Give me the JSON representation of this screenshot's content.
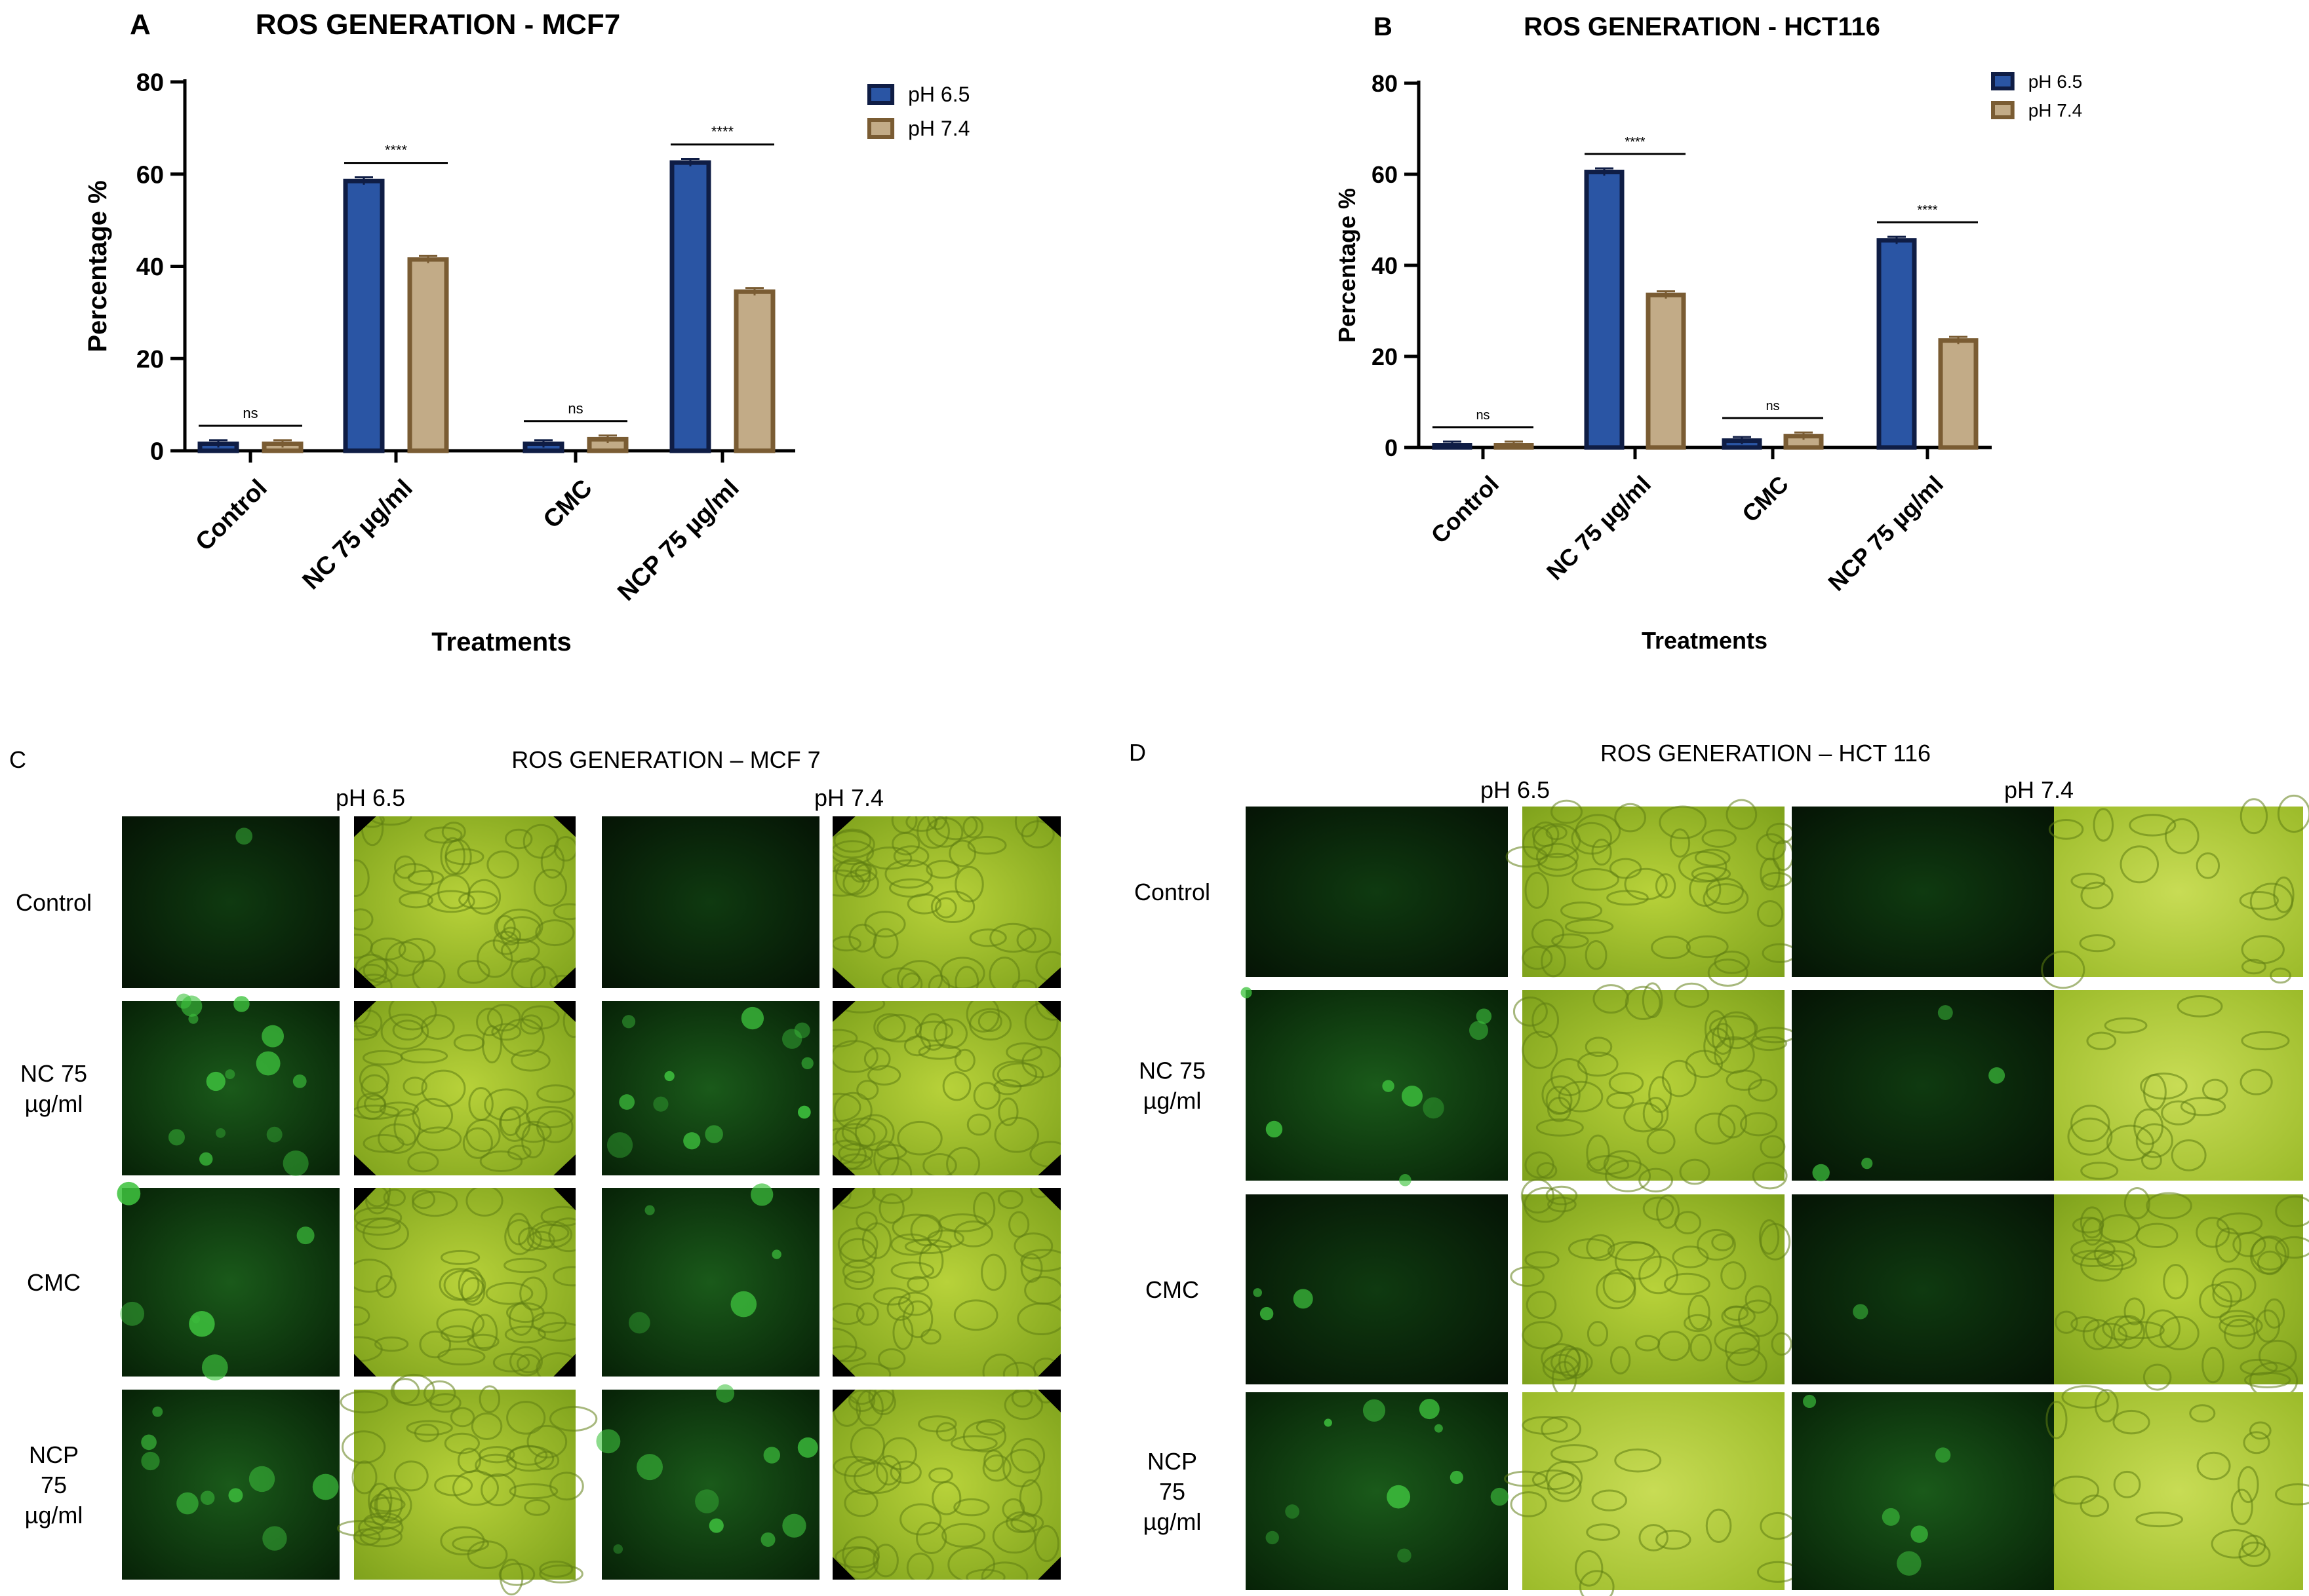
{
  "panels": {
    "A": {
      "letter": "A",
      "title": "ROS GENERATION - MCF7"
    },
    "B": {
      "letter": "B",
      "title": "ROS GENERATION - HCT116"
    },
    "C": {
      "letter": "C",
      "title": "ROS GENERATION – MCF 7",
      "col_labels": [
        "pH 6.5",
        "pH 7.4"
      ],
      "row_labels": [
        [
          "Control"
        ],
        [
          "NC 75",
          "µg/ml"
        ],
        [
          "CMC"
        ],
        [
          "NCP",
          "75",
          "µg/ml"
        ]
      ]
    },
    "D": {
      "letter": "D",
      "title": "ROS GENERATION – HCT 116",
      "col_labels": [
        "pH 6.5",
        "pH 7.4"
      ],
      "row_labels": [
        [
          "Control"
        ],
        [
          "NC 75",
          "µg/ml"
        ],
        [
          "CMC"
        ],
        [
          "NCP",
          "75",
          "µg/ml"
        ]
      ]
    }
  },
  "colors": {
    "ph65": "#2a55a4",
    "ph65_edge": "#0f1d45",
    "ph74": "#c2ab87",
    "ph74_edge": "#7a5c33"
  },
  "chart_data": [
    {
      "type": "bar",
      "title": "ROS GENERATION - MCF7",
      "xlabel": "Treatments",
      "ylabel": "Percentage %",
      "ylim": [
        0,
        80
      ],
      "yticks": [
        0,
        20,
        40,
        60,
        80
      ],
      "categories": [
        "Control",
        "NC 75 µg/ml",
        "CMC",
        "NCP 75 µg/ml"
      ],
      "series": [
        {
          "name": "pH 6.5",
          "values": [
            1.5,
            58.5,
            1.5,
            62.5
          ],
          "errors": [
            0.8,
            0.8,
            0.8,
            0.8
          ]
        },
        {
          "name": "pH 7.4",
          "values": [
            1.5,
            41.5,
            2.5,
            34.5
          ],
          "errors": [
            0.8,
            0.8,
            0.8,
            0.8
          ]
        }
      ],
      "significance": [
        "ns",
        "****",
        "ns",
        "****"
      ],
      "legend": "top-right",
      "grid": false
    },
    {
      "type": "bar",
      "title": "ROS GENERATION - HCT116",
      "xlabel": "Treatments",
      "ylabel": "Percentage %",
      "ylim": [
        0,
        80
      ],
      "yticks": [
        0,
        20,
        40,
        60,
        80
      ],
      "categories": [
        "Control",
        "NC 75 µg/ml",
        "CMC",
        "NCP 75 µg/ml"
      ],
      "series": [
        {
          "name": "pH 6.5",
          "values": [
            0.5,
            60.5,
            1.5,
            45.5
          ],
          "errors": [
            0.8,
            0.8,
            0.8,
            0.8
          ]
        },
        {
          "name": "pH 7.4",
          "values": [
            0.5,
            33.5,
            2.5,
            23.5
          ],
          "errors": [
            0.8,
            0.8,
            0.8,
            0.8
          ]
        }
      ],
      "significance": [
        "ns",
        "****",
        "ns",
        "****"
      ],
      "legend": "top-right",
      "grid": false
    }
  ]
}
